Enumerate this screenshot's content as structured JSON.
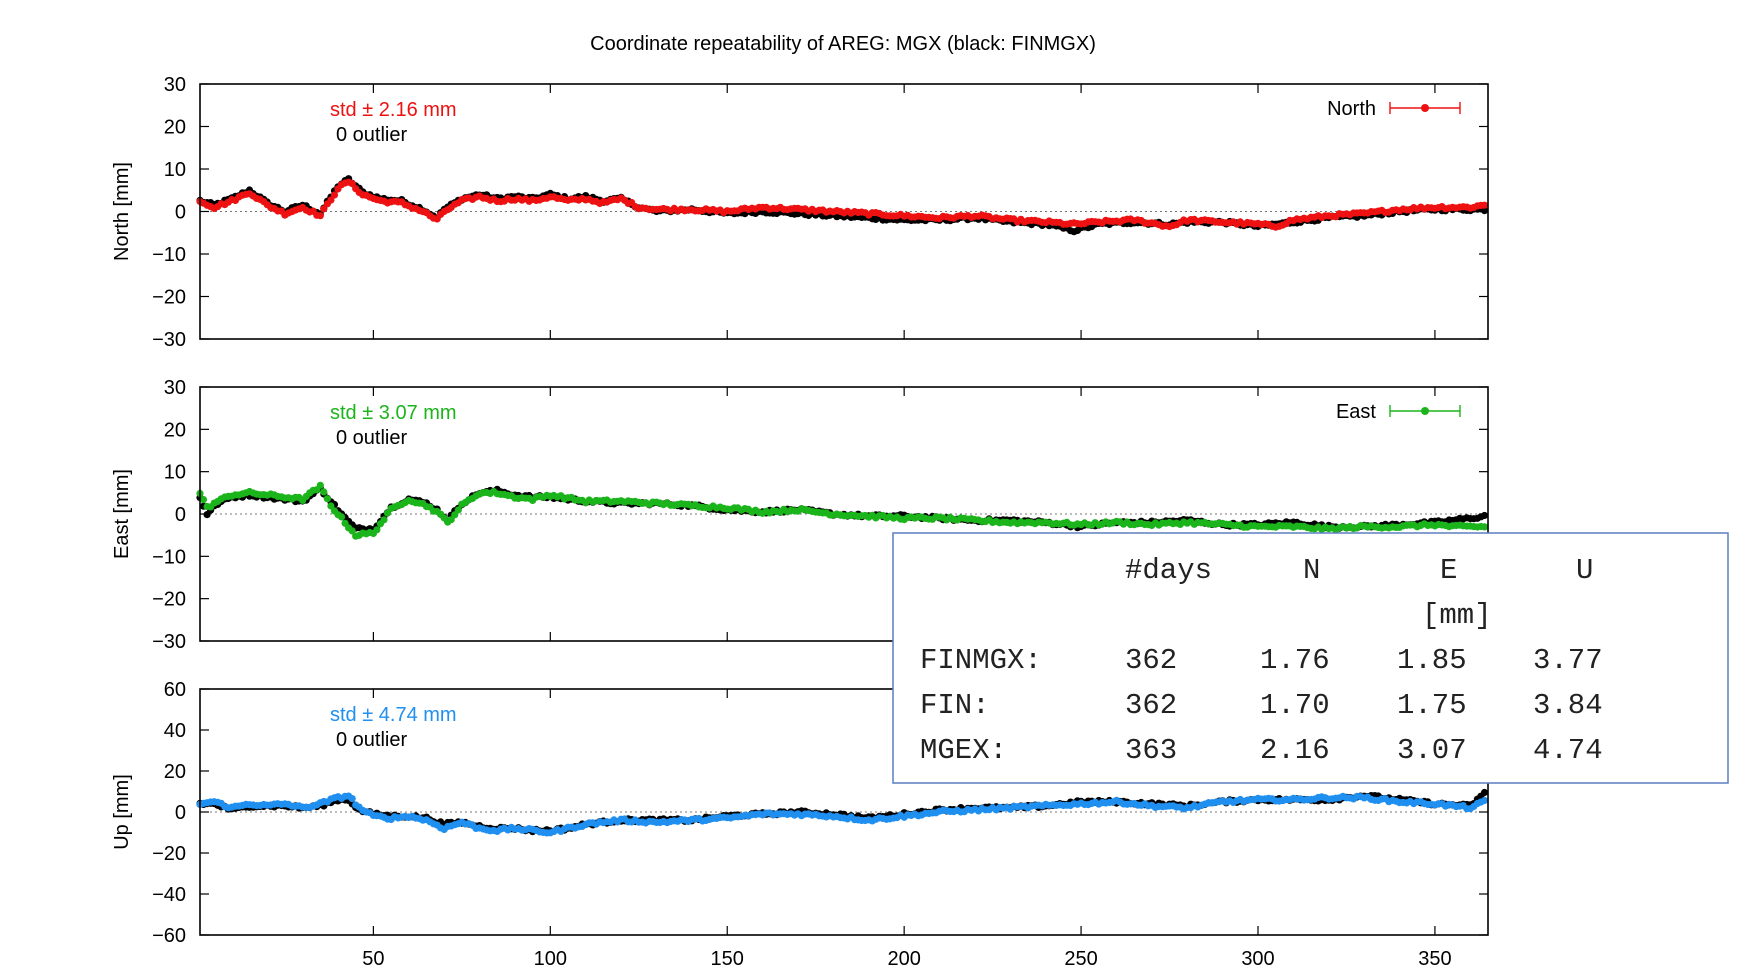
{
  "chart_data": {
    "type": "scatter",
    "title": "Coordinate repeatability of AREG: MGX (black: FINMGX)",
    "xlim": [
      1,
      365
    ],
    "xticks": [
      50,
      100,
      150,
      200,
      250,
      300,
      350
    ],
    "grid": false,
    "panels": [
      {
        "id": "north",
        "ylabel": "North [mm]",
        "ylim": [
          -30,
          30
        ],
        "yticks": [
          -30,
          -20,
          -10,
          0,
          10,
          20,
          30
        ],
        "legend": "North",
        "legend_position": "top-right",
        "color": "#ee1111",
        "std_text": "std ± 2.16 mm",
        "outlier_text": "0 outlier",
        "x_nodes": [
          1,
          5,
          10,
          15,
          20,
          25,
          30,
          35,
          40,
          43,
          47,
          52,
          58,
          64,
          68,
          70,
          75,
          80,
          85,
          90,
          95,
          100,
          105,
          110,
          115,
          120,
          125,
          130,
          140,
          150,
          160,
          170,
          180,
          190,
          200,
          210,
          220,
          230,
          240,
          248,
          255,
          265,
          275,
          280,
          290,
          300,
          305,
          310,
          320,
          330,
          340,
          350,
          360,
          364
        ],
        "series": [
          {
            "name": "MGX",
            "values": [
              2.5,
              1.0,
              2.5,
              4.5,
              1.5,
              -0.5,
              1.0,
              -1.0,
              5.5,
              7.0,
              4.0,
              2.5,
              2.0,
              0.0,
              -2.0,
              0.0,
              2.5,
              3.5,
              2.5,
              3.0,
              2.5,
              3.5,
              2.5,
              3.0,
              2.0,
              3.0,
              1.0,
              0.5,
              0.5,
              0.0,
              1.0,
              0.5,
              0.0,
              -0.5,
              -1.0,
              -1.5,
              -1.0,
              -2.0,
              -2.5,
              -3.0,
              -2.5,
              -2.0,
              -3.5,
              -2.0,
              -2.5,
              -3.0,
              -3.5,
              -2.0,
              -1.0,
              -0.5,
              0.5,
              1.0,
              1.0,
              1.5
            ]
          },
          {
            "name": "FINMGX",
            "values": [
              2.5,
              1.5,
              3.0,
              5.0,
              2.0,
              0.0,
              1.5,
              -0.5,
              6.0,
              7.5,
              4.5,
              3.0,
              2.5,
              0.5,
              -1.5,
              0.5,
              3.0,
              4.0,
              3.0,
              3.5,
              3.0,
              4.0,
              3.0,
              3.5,
              2.5,
              3.0,
              1.0,
              0.0,
              0.5,
              -0.5,
              0.0,
              -0.5,
              -1.0,
              -1.5,
              -2.0,
              -2.0,
              -1.5,
              -2.5,
              -3.0,
              -4.5,
              -3.0,
              -2.5,
              -3.0,
              -2.5,
              -2.5,
              -3.5,
              -3.0,
              -2.5,
              -1.5,
              -1.0,
              0.0,
              0.5,
              0.5,
              0.5
            ]
          }
        ]
      },
      {
        "id": "east",
        "ylabel": "East [mm]",
        "ylim": [
          -30,
          30
        ],
        "yticks": [
          -30,
          -20,
          -10,
          0,
          10,
          20,
          30
        ],
        "legend": "East",
        "legend_position": "top-right",
        "color": "#1bb51b",
        "std_text": "std ± 3.07 mm",
        "outlier_text": "0 outlier",
        "x_nodes": [
          1,
          3,
          6,
          10,
          15,
          20,
          25,
          30,
          35,
          38,
          42,
          45,
          50,
          55,
          60,
          65,
          68,
          71,
          75,
          80,
          85,
          90,
          95,
          100,
          110,
          120,
          130,
          140,
          150,
          160,
          170,
          180,
          190,
          200,
          210,
          220,
          230,
          240,
          250,
          260,
          270,
          280,
          290,
          300,
          310,
          320,
          330,
          340,
          350,
          355,
          360,
          364
        ],
        "series": [
          {
            "name": "MGX",
            "values": [
              5.0,
              1.5,
              3.0,
              4.5,
              5.0,
              4.5,
              4.0,
              3.5,
              6.5,
              2.0,
              -2.0,
              -5.0,
              -4.5,
              1.0,
              3.5,
              2.0,
              0.5,
              -2.0,
              2.0,
              5.0,
              5.0,
              4.0,
              3.5,
              4.5,
              3.0,
              3.0,
              2.5,
              2.0,
              1.5,
              0.5,
              1.0,
              0.0,
              -0.5,
              -1.0,
              -1.0,
              -1.5,
              -2.0,
              -2.0,
              -2.5,
              -2.0,
              -2.5,
              -2.0,
              -2.5,
              -3.0,
              -3.0,
              -3.5,
              -3.0,
              -3.0,
              -2.5,
              -3.0,
              -3.0,
              -3.0
            ]
          },
          {
            "name": "FINMGX",
            "values": [
              4.0,
              0.0,
              2.5,
              4.0,
              4.5,
              4.0,
              3.5,
              3.0,
              6.0,
              3.0,
              -1.0,
              -3.5,
              -3.5,
              1.5,
              3.5,
              2.5,
              1.0,
              -1.5,
              2.5,
              5.0,
              5.5,
              4.5,
              4.0,
              4.0,
              3.0,
              2.5,
              2.5,
              2.0,
              1.0,
              0.5,
              1.0,
              0.0,
              -0.5,
              -0.5,
              -1.0,
              -1.5,
              -1.5,
              -2.0,
              -3.0,
              -2.0,
              -2.0,
              -1.5,
              -2.5,
              -2.5,
              -2.0,
              -3.0,
              -3.0,
              -2.5,
              -2.0,
              -1.5,
              -1.0,
              -0.5
            ]
          }
        ]
      },
      {
        "id": "up",
        "ylabel": "Up [mm]",
        "ylim": [
          -60,
          60
        ],
        "yticks": [
          -60,
          -40,
          -20,
          0,
          20,
          40,
          60
        ],
        "legend": "",
        "color": "#1f8ff0",
        "std_text": "std ± 4.74 mm",
        "outlier_text": "0 outlier",
        "x_nodes": [
          1,
          5,
          10,
          15,
          20,
          25,
          30,
          35,
          40,
          43,
          46,
          50,
          55,
          60,
          65,
          70,
          75,
          80,
          85,
          90,
          95,
          100,
          105,
          110,
          120,
          130,
          140,
          150,
          160,
          170,
          180,
          190,
          200,
          210,
          220,
          230,
          240,
          250,
          260,
          270,
          280,
          290,
          300,
          310,
          320,
          330,
          340,
          350,
          360,
          364
        ],
        "series": [
          {
            "name": "MGX",
            "values": [
              4.0,
              5.0,
              2.0,
              4.0,
              3.0,
              4.0,
              2.0,
              4.0,
              7.0,
              8.0,
              2.0,
              -2.0,
              -3.0,
              -2.0,
              -4.0,
              -8.0,
              -5.0,
              -8.0,
              -9.0,
              -8.0,
              -9.0,
              -10.0,
              -8.0,
              -6.0,
              -4.0,
              -5.0,
              -4.0,
              -3.0,
              -1.0,
              -1.0,
              -2.0,
              -4.0,
              -2.0,
              0.0,
              1.0,
              2.0,
              3.0,
              4.0,
              5.0,
              3.0,
              2.0,
              5.0,
              6.0,
              6.0,
              7.0,
              7.0,
              5.0,
              4.0,
              2.0,
              5.0
            ]
          },
          {
            "name": "FINMGX",
            "values": [
              4.0,
              4.0,
              1.0,
              3.0,
              3.0,
              3.0,
              2.0,
              3.0,
              6.0,
              6.0,
              1.0,
              -1.0,
              -2.0,
              -2.0,
              -3.0,
              -6.0,
              -5.0,
              -7.0,
              -8.0,
              -8.0,
              -9.0,
              -9.0,
              -8.0,
              -6.0,
              -4.0,
              -4.0,
              -4.0,
              -2.0,
              -1.0,
              0.0,
              -1.0,
              -3.0,
              -1.0,
              1.0,
              2.0,
              2.0,
              3.0,
              5.0,
              5.0,
              4.0,
              3.0,
              5.0,
              6.0,
              6.0,
              6.0,
              8.0,
              6.0,
              4.0,
              3.0,
              9.0
            ]
          }
        ]
      }
    ],
    "table": {
      "header": [
        "#days",
        "N",
        "E",
        "U"
      ],
      "unit": "[mm]",
      "rows": [
        {
          "label": "FINMGX:",
          "days": "362",
          "n": "1.76",
          "e": "1.85",
          "u": "3.77"
        },
        {
          "label": "FIN:",
          "days": "362",
          "n": "1.70",
          "e": "1.75",
          "u": "3.84"
        },
        {
          "label": "MGEX:",
          "days": "363",
          "n": "2.16",
          "e": "3.07",
          "u": "4.74"
        }
      ]
    }
  }
}
